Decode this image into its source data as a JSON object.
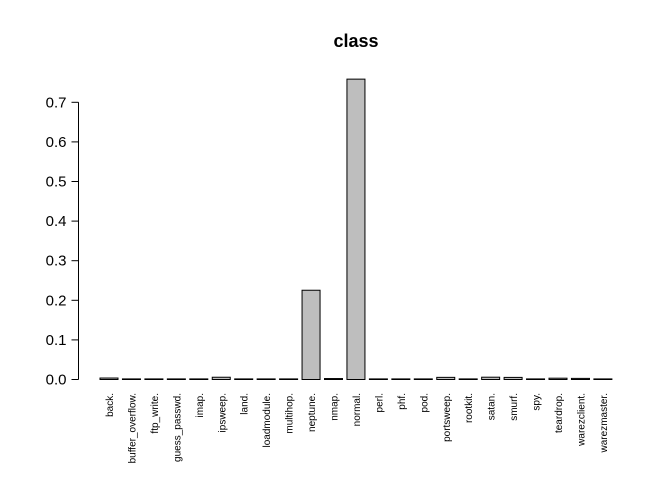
{
  "chart_data": {
    "type": "bar",
    "title": "class",
    "xlabel": "",
    "ylabel": "",
    "ylim": [
      0,
      0.75
    ],
    "yticks": [
      0.0,
      0.1,
      0.2,
      0.3,
      0.4,
      0.5,
      0.6,
      0.7
    ],
    "ytick_labels": [
      "0.0",
      "0.1",
      "0.2",
      "0.3",
      "0.4",
      "0.5",
      "0.6",
      "0.7"
    ],
    "grid": false,
    "legend": "none",
    "categories": [
      "back.",
      "buffer_overflow.",
      "ftp_write.",
      "guess_passwd.",
      "imap.",
      "ipsweep.",
      "land.",
      "loadmodule.",
      "multihop.",
      "neptune.",
      "nmap.",
      "normal.",
      "perl.",
      "phf.",
      "pod.",
      "portsweep.",
      "rootkit.",
      "satan.",
      "smurf.",
      "spy.",
      "teardrop.",
      "warezclient.",
      "warezmaster."
    ],
    "values": [
      0.0037,
      0.0001,
      0.0001,
      0.0004,
      0.0002,
      0.0057,
      0.0001,
      0.0001,
      0.0001,
      0.2254,
      0.0024,
      0.7585,
      0.0001,
      0.0001,
      0.0003,
      0.0054,
      0.0001,
      0.0058,
      0.0053,
      0.0001,
      0.0033,
      0.0028,
      0.0001
    ],
    "colors": {
      "bar_fill": "#bebebe",
      "bar_stroke": "#000000",
      "axis": "#000000"
    }
  }
}
